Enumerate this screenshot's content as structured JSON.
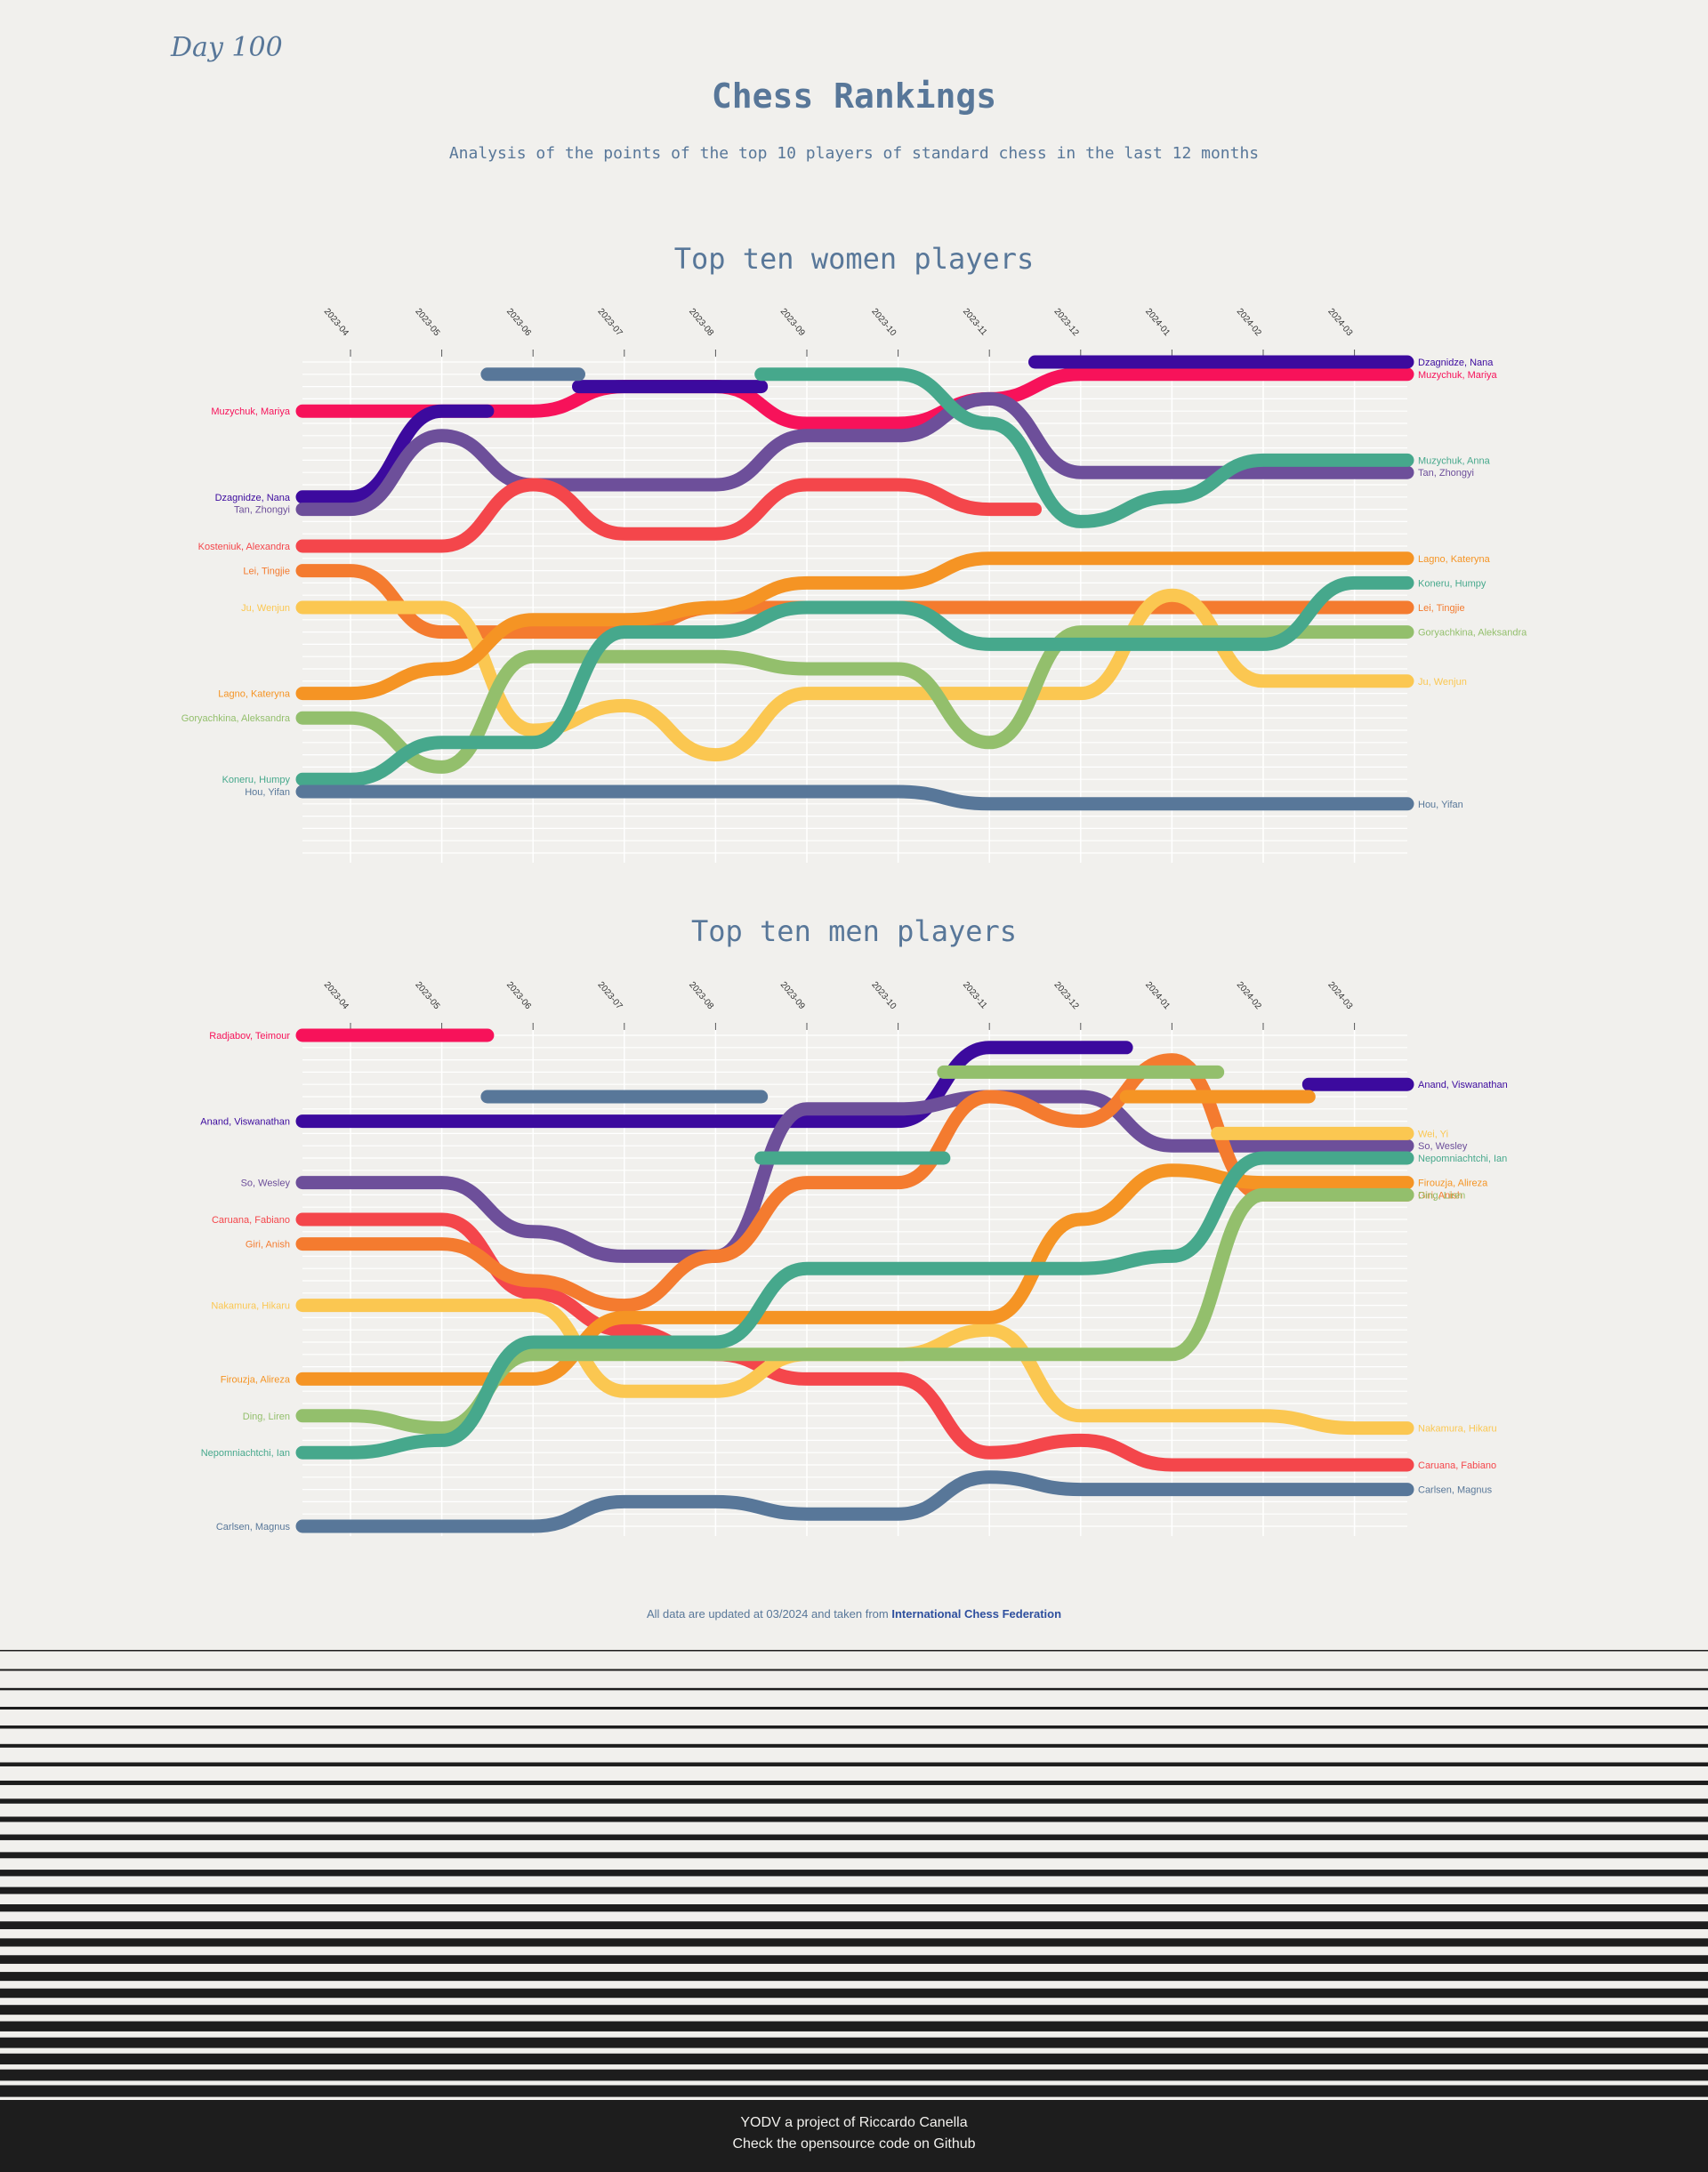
{
  "header": {
    "day": "Day 100",
    "title": "Chess Rankings",
    "subtitle": "Analysis of the points of the top 10 players of standard chess in the last 12 months"
  },
  "months": [
    "2023-04",
    "2023-05",
    "2023-06",
    "2023-07",
    "2023-08",
    "2023-09",
    "2023-10",
    "2023-11",
    "2023-12",
    "2024-01",
    "2024-02",
    "2024-03"
  ],
  "chart_data": [
    {
      "type": "line",
      "title": "Top ten women players",
      "xlabel": "",
      "ylabel": "",
      "grid": true,
      "legend": "labels at line ends",
      "x": [
        "2023-04",
        "2023-05",
        "2023-06",
        "2023-07",
        "2023-08",
        "2023-09",
        "2023-10",
        "2023-11",
        "2023-12",
        "2024-01",
        "2024-02",
        "2024-03"
      ],
      "y_scale": "rank (1 = top)",
      "series": [
        {
          "name": "Muzychuk, Mariya",
          "color": "#f7125a",
          "ranks": [
            4,
            4,
            4,
            2,
            2,
            5,
            5,
            3,
            1,
            1,
            1,
            1
          ],
          "start_label": "Muzychuk, Mariya",
          "end_label": "Muzychuk, Mariya"
        },
        {
          "name": "Dzagnidze, Nana",
          "color": "#3c0a9e",
          "ranks": [
            11,
            4,
            null,
            2,
            2,
            null,
            null,
            null,
            0,
            0,
            0,
            0
          ],
          "start_label": "Dzagnidze, Nana",
          "end_label": "Dzagnidze, Nana"
        },
        {
          "name": "Tan, Zhongyi",
          "color": "#6d4f9a",
          "ranks": [
            12,
            6,
            10,
            10,
            10,
            6,
            6,
            3,
            9,
            9,
            9,
            9
          ],
          "start_label": "Tan, Zhongyi",
          "end_label": "Tan, Zhongyi"
        },
        {
          "name": "Kosteniuk, Alexandra",
          "color": "#f4464b",
          "ranks": [
            15,
            15,
            10,
            14,
            14,
            10,
            10,
            12,
            null,
            null,
            null,
            null
          ],
          "start_label": "Kosteniuk, Alexandra",
          "end_label": ""
        },
        {
          "name": "Lei, Tingjie",
          "color": "#f47b2f",
          "ranks": [
            17,
            22,
            22,
            22,
            20,
            20,
            20,
            20,
            20,
            20,
            20,
            20
          ],
          "start_label": "Lei, Tingjie",
          "end_label": "Lei, Tingjie"
        },
        {
          "name": "Ju, Wenjun",
          "color": "#fbc751",
          "ranks": [
            20,
            20,
            30,
            28,
            32,
            27,
            27,
            27,
            27,
            19,
            26,
            26
          ],
          "start_label": "Ju, Wenjun",
          "end_label": "Ju, Wenjun"
        },
        {
          "name": "Lagno, Kateryna",
          "color": "#f59424",
          "ranks": [
            27,
            25,
            21,
            21,
            20,
            18,
            18,
            16,
            16,
            16,
            16,
            16
          ],
          "start_label": "Lagno, Kateryna",
          "end_label": "Lagno, Kateryna"
        },
        {
          "name": "Goryachkina, Aleksandra",
          "color": "#93bf6c",
          "ranks": [
            29,
            33,
            24,
            24,
            24,
            25,
            25,
            31,
            22,
            22,
            22,
            22
          ],
          "start_label": "Goryachkina, Aleksandra",
          "end_label": "Goryachkina, Aleksandra"
        },
        {
          "name": "Koneru, Humpy",
          "color": "#46a88c",
          "ranks": [
            34,
            31,
            31,
            22,
            22,
            20,
            20,
            23,
            23,
            23,
            23,
            18
          ],
          "start_label": "Koneru, Humpy",
          "end_label": "Koneru, Humpy"
        },
        {
          "name": "Muzychuk, Anna",
          "color": "#46a88c",
          "ranks": [
            null,
            null,
            null,
            null,
            null,
            1,
            1,
            5,
            13,
            11,
            8,
            8
          ],
          "start_label": "",
          "end_label": "Muzychuk, Anna"
        },
        {
          "name": "Hou, Yifan",
          "color": "#587799",
          "ranks": [
            35,
            35,
            35,
            35,
            35,
            35,
            35,
            36,
            36,
            36,
            36,
            36
          ],
          "start_label": "Hou, Yifan",
          "end_label": "Hou, Yifan"
        },
        {
          "name": "",
          "color": "#587799",
          "ranks": [
            null,
            null,
            1,
            null,
            null,
            null,
            null,
            null,
            null,
            null,
            null,
            null
          ],
          "start_label": "",
          "end_label": ""
        }
      ]
    },
    {
      "type": "line",
      "title": "Top ten men players",
      "xlabel": "",
      "ylabel": "",
      "grid": true,
      "legend": "labels at line ends",
      "x": [
        "2023-04",
        "2023-05",
        "2023-06",
        "2023-07",
        "2023-08",
        "2023-09",
        "2023-10",
        "2023-11",
        "2023-12",
        "2024-01",
        "2024-02",
        "2024-03"
      ],
      "y_scale": "rank (1 = top)",
      "series": [
        {
          "name": "Radjabov, Teimour",
          "color": "#f7125a",
          "ranks": [
            0,
            0,
            null,
            null,
            null,
            null,
            null,
            null,
            null,
            null,
            null,
            null
          ],
          "start_label": "Radjabov, Teimour",
          "end_label": ""
        },
        {
          "name": "Anand, Viswanathan",
          "color": "#3c0a9e",
          "ranks": [
            7,
            7,
            7,
            7,
            7,
            7,
            7,
            1,
            1,
            null,
            null,
            4
          ],
          "start_label": "Anand, Viswanathan",
          "end_label": "Anand, Viswanathan"
        },
        {
          "name": "So, Wesley",
          "color": "#6d4f9a",
          "ranks": [
            12,
            12,
            16,
            18,
            18,
            6,
            6,
            5,
            5,
            9,
            9,
            9
          ],
          "start_label": "So, Wesley",
          "end_label": "So, Wesley"
        },
        {
          "name": "Caruana, Fabiano",
          "color": "#f4464b",
          "ranks": [
            15,
            15,
            21,
            24,
            26,
            28,
            28,
            34,
            33,
            35,
            35,
            35
          ],
          "start_label": "Caruana, Fabiano",
          "end_label": "Caruana, Fabiano"
        },
        {
          "name": "Giri, Anish",
          "color": "#f47b2f",
          "ranks": [
            17,
            17,
            20,
            22,
            18,
            12,
            12,
            5,
            7,
            2,
            13,
            13
          ],
          "start_label": "Giri, Anish",
          "end_label": "Giri, Anish"
        },
        {
          "name": "Nakamura, Hikaru",
          "color": "#fbc751",
          "ranks": [
            22,
            22,
            22,
            29,
            29,
            26,
            26,
            24,
            31,
            31,
            31,
            32
          ],
          "start_label": "Nakamura, Hikaru",
          "end_label": "Nakamura, Hikaru"
        },
        {
          "name": "Firouzja, Alireza",
          "color": "#f59424",
          "ranks": [
            28,
            28,
            28,
            23,
            23,
            23,
            23,
            23,
            15,
            11,
            12,
            12
          ],
          "start_label": "Firouzja, Alireza",
          "end_label": "Firouzja, Alireza"
        },
        {
          "name": "Ding, Liren",
          "color": "#93bf6c",
          "ranks": [
            31,
            32,
            26,
            26,
            26,
            26,
            26,
            26,
            26,
            26,
            13,
            13
          ],
          "start_label": "Ding, Liren",
          "end_label": "Ding, Liren"
        },
        {
          "name": "Nepomniachtchi, Ian",
          "color": "#46a88c",
          "ranks": [
            34,
            33,
            25,
            25,
            25,
            19,
            19,
            19,
            19,
            18,
            10,
            10
          ],
          "start_label": "Nepomniachtchi, Ian",
          "end_label": "Nepomniachtchi, Ian"
        },
        {
          "name": "Carlsen, Magnus",
          "color": "#587799",
          "ranks": [
            40,
            40,
            40,
            38,
            38,
            39,
            39,
            36,
            37,
            37,
            37,
            37
          ],
          "start_label": "Carlsen, Magnus",
          "end_label": "Carlsen, Magnus"
        },
        {
          "name": "Wei, Yi",
          "color": "#fbc751",
          "ranks": [
            null,
            null,
            null,
            null,
            null,
            null,
            null,
            null,
            null,
            null,
            8,
            8
          ],
          "start_label": "",
          "end_label": "Wei, Yi"
        },
        {
          "name": "",
          "color": "#587799",
          "ranks": [
            null,
            null,
            5,
            5,
            5,
            null,
            null,
            null,
            null,
            null,
            null,
            null
          ],
          "start_label": "",
          "end_label": ""
        },
        {
          "name": "",
          "color": "#46a88c",
          "ranks": [
            null,
            null,
            null,
            null,
            null,
            10,
            10,
            null,
            null,
            null,
            null,
            null
          ],
          "start_label": "",
          "end_label": ""
        },
        {
          "name": "",
          "color": "#93bf6c",
          "ranks": [
            null,
            null,
            null,
            null,
            null,
            null,
            null,
            3,
            3,
            3,
            null,
            null
          ],
          "start_label": "",
          "end_label": ""
        },
        {
          "name": "",
          "color": "#f59424",
          "ranks": [
            null,
            null,
            null,
            null,
            null,
            null,
            null,
            null,
            null,
            5,
            5,
            null
          ],
          "start_label": "",
          "end_label": ""
        }
      ]
    }
  ],
  "footnote": {
    "text": "All data are updated at 03/2024 and taken from",
    "link": "International Chess Federation"
  },
  "footer": {
    "line1": "YODV a project of Riccardo Canella",
    "line2": "Check the opensource code on Github"
  }
}
